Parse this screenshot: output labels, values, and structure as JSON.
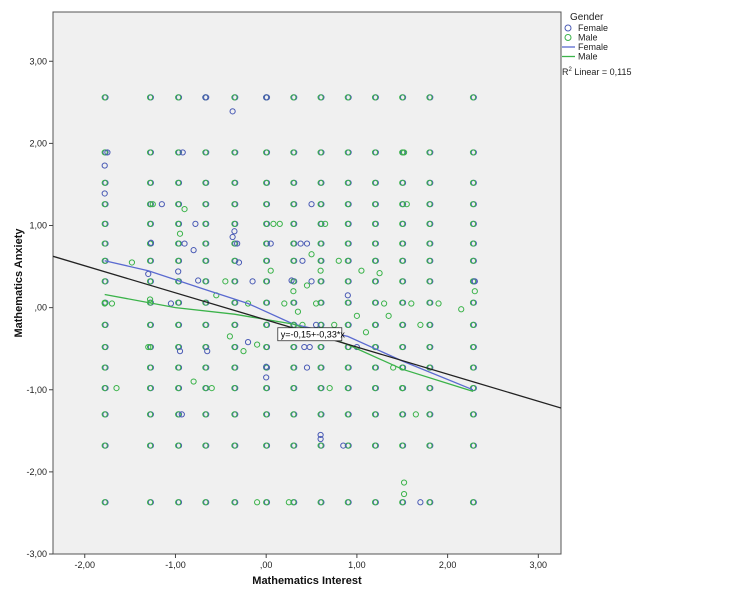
{
  "chart_data": {
    "type": "scatter",
    "xlabel": "Mathematics Interest",
    "ylabel": "Mathematics Anxiety",
    "xlim": [
      -2.35,
      3.25
    ],
    "ylim": [
      -3.0,
      3.6
    ],
    "x_ticks": [
      -2,
      -1,
      0,
      1,
      2,
      3
    ],
    "x_tick_labels": [
      "-2,00",
      "-1,00",
      ",00",
      "1,00",
      "2,00",
      "3,00"
    ],
    "y_ticks": [
      3,
      2,
      1,
      0,
      -1,
      -2,
      -3
    ],
    "y_tick_labels": [
      "3,00",
      "2,00",
      "1,00",
      ",00",
      "-1,00",
      "-2,00",
      "-3,00"
    ],
    "grid": false,
    "legend": {
      "title": "Gender",
      "position": "right",
      "items": [
        {
          "label": "Female",
          "kind": "marker",
          "color": "#4a5bb5"
        },
        {
          "label": "Male",
          "kind": "marker",
          "color": "#3bb34a"
        },
        {
          "label": "Female",
          "kind": "line",
          "color": "#5a6ad0"
        },
        {
          "label": "Male",
          "kind": "line",
          "color": "#3bb34a"
        }
      ],
      "r2_prefix": "R",
      "r2_sup": "2",
      "r2_suffix": " Linear = 0,115"
    },
    "fit_line": {
      "label": "y=-0,15+-0,33*x",
      "intercept": -0.15,
      "slope": -0.33,
      "label_at": [
        0.15,
        -0.33
      ],
      "color": "#222222"
    },
    "x_grid_values": [
      -1.78,
      -1.28,
      -0.97,
      -0.67,
      -0.35,
      0.0,
      0.3,
      0.6,
      0.9,
      1.2,
      1.5,
      1.8,
      2.28
    ],
    "y_grid_values": [
      2.56,
      1.89,
      1.52,
      1.26,
      1.02,
      0.78,
      0.57,
      0.32,
      0.06,
      -0.21,
      -0.48,
      -0.73,
      -0.98,
      -1.3,
      -1.68,
      -2.37
    ],
    "series": [
      {
        "name": "Female",
        "color": "#4a5bb5",
        "points": [
          [
            -1.78,
            1.73
          ],
          [
            -1.78,
            1.39
          ],
          [
            -1.75,
            1.89
          ],
          [
            -1.3,
            0.41
          ],
          [
            -1.27,
            0.79
          ],
          [
            -1.15,
            1.26
          ],
          [
            -1.05,
            0.05
          ],
          [
            -0.97,
            0.44
          ],
          [
            -0.95,
            -0.53
          ],
          [
            -0.93,
            -1.3
          ],
          [
            -0.92,
            1.89
          ],
          [
            -0.9,
            0.78
          ],
          [
            -0.8,
            0.7
          ],
          [
            -0.78,
            1.02
          ],
          [
            -0.75,
            0.33
          ],
          [
            -0.67,
            2.56
          ],
          [
            -0.65,
            -0.53
          ],
          [
            -0.37,
            2.39
          ],
          [
            -0.37,
            0.86
          ],
          [
            -0.35,
            0.93
          ],
          [
            -0.32,
            0.78
          ],
          [
            -0.3,
            0.55
          ],
          [
            -0.2,
            -0.42
          ],
          [
            -0.15,
            0.32
          ],
          [
            0.0,
            2.56
          ],
          [
            0.0,
            -0.72
          ],
          [
            0.0,
            -0.85
          ],
          [
            0.05,
            0.78
          ],
          [
            0.28,
            0.33
          ],
          [
            0.38,
            0.78
          ],
          [
            0.4,
            0.57
          ],
          [
            0.42,
            -0.48
          ],
          [
            0.45,
            0.78
          ],
          [
            0.45,
            -0.73
          ],
          [
            0.48,
            -0.48
          ],
          [
            0.5,
            1.26
          ],
          [
            0.5,
            0.32
          ],
          [
            0.55,
            -0.21
          ],
          [
            0.6,
            -1.55
          ],
          [
            0.6,
            -1.6
          ],
          [
            0.85,
            -1.68
          ],
          [
            0.9,
            0.15
          ],
          [
            1.0,
            -0.48
          ],
          [
            1.7,
            -2.37
          ],
          [
            2.3,
            0.32
          ]
        ]
      },
      {
        "name": "Male",
        "color": "#3bb34a",
        "points": [
          [
            -1.78,
            0.05
          ],
          [
            -1.7,
            0.05
          ],
          [
            -1.65,
            -0.98
          ],
          [
            -1.48,
            0.55
          ],
          [
            -1.3,
            -0.48
          ],
          [
            -1.25,
            1.26
          ],
          [
            -1.28,
            0.1
          ],
          [
            -0.95,
            0.9
          ],
          [
            -0.9,
            1.2
          ],
          [
            -0.8,
            -0.9
          ],
          [
            -0.6,
            -0.98
          ],
          [
            -0.55,
            0.15
          ],
          [
            -0.45,
            0.32
          ],
          [
            -0.4,
            -0.35
          ],
          [
            -0.25,
            -0.53
          ],
          [
            -0.1,
            -0.45
          ],
          [
            0.05,
            0.45
          ],
          [
            0.08,
            1.02
          ],
          [
            0.15,
            1.02
          ],
          [
            0.2,
            0.05
          ],
          [
            0.25,
            -0.3
          ],
          [
            0.3,
            0.2
          ],
          [
            0.35,
            -0.05
          ],
          [
            0.4,
            -0.21
          ],
          [
            0.45,
            0.27
          ],
          [
            0.5,
            0.65
          ],
          [
            0.55,
            0.05
          ],
          [
            0.6,
            0.45
          ],
          [
            0.65,
            1.02
          ],
          [
            0.7,
            -0.98
          ],
          [
            0.75,
            -0.21
          ],
          [
            0.8,
            0.57
          ],
          [
            1.0,
            -0.1
          ],
          [
            1.05,
            0.45
          ],
          [
            1.1,
            -0.3
          ],
          [
            1.25,
            0.42
          ],
          [
            1.3,
            0.05
          ],
          [
            1.35,
            -0.1
          ],
          [
            1.4,
            -0.73
          ],
          [
            1.5,
            -0.98
          ],
          [
            1.52,
            -2.13
          ],
          [
            1.52,
            -2.27
          ],
          [
            1.55,
            1.26
          ],
          [
            1.6,
            0.05
          ],
          [
            1.65,
            -1.3
          ],
          [
            1.7,
            -0.21
          ],
          [
            1.9,
            0.05
          ],
          [
            2.15,
            -0.02
          ],
          [
            2.3,
            0.2
          ],
          [
            1.52,
            1.89
          ],
          [
            -0.1,
            -2.37
          ],
          [
            0.25,
            -2.37
          ],
          [
            -0.2,
            0.05
          ]
        ]
      }
    ],
    "grid_series_color": "#3bb34a",
    "fit_lines_by_group": [
      {
        "name": "Female",
        "color": "#5a6ad0",
        "points": [
          [
            -1.78,
            0.57
          ],
          [
            -1.3,
            0.45
          ],
          [
            -0.67,
            0.22
          ],
          [
            -0.2,
            0.05
          ],
          [
            0.3,
            -0.2
          ],
          [
            0.9,
            -0.35
          ],
          [
            1.5,
            -0.65
          ],
          [
            2.28,
            -1.0
          ]
        ]
      },
      {
        "name": "Male",
        "color": "#3bb34a",
        "points": [
          [
            -1.78,
            0.16
          ],
          [
            -1.0,
            0.0
          ],
          [
            -0.35,
            -0.08
          ],
          [
            0.3,
            -0.2
          ],
          [
            0.9,
            -0.45
          ],
          [
            1.5,
            -0.75
          ],
          [
            2.28,
            -1.02
          ]
        ]
      }
    ]
  }
}
